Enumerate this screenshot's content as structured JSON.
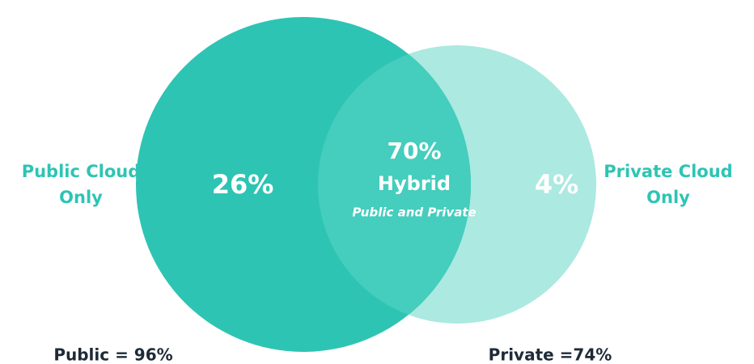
{
  "chart_data": {
    "type": "venn",
    "sets": [
      {
        "name": [
          "Public Cloud",
          "Only"
        ],
        "color": "#2ec4b4"
      },
      {
        "name": [
          "Private Cloud",
          "Only"
        ],
        "color": "#abe9e1"
      }
    ],
    "overlap": {
      "name": "Hybrid",
      "sublabel": "Public and Private",
      "color": "#45cdbd"
    },
    "values": [
      26,
      70,
      4
    ],
    "value_labels": [
      "26%",
      "70%",
      "4%"
    ],
    "totals": [
      "Public = 96%",
      "Private =74%"
    ]
  }
}
